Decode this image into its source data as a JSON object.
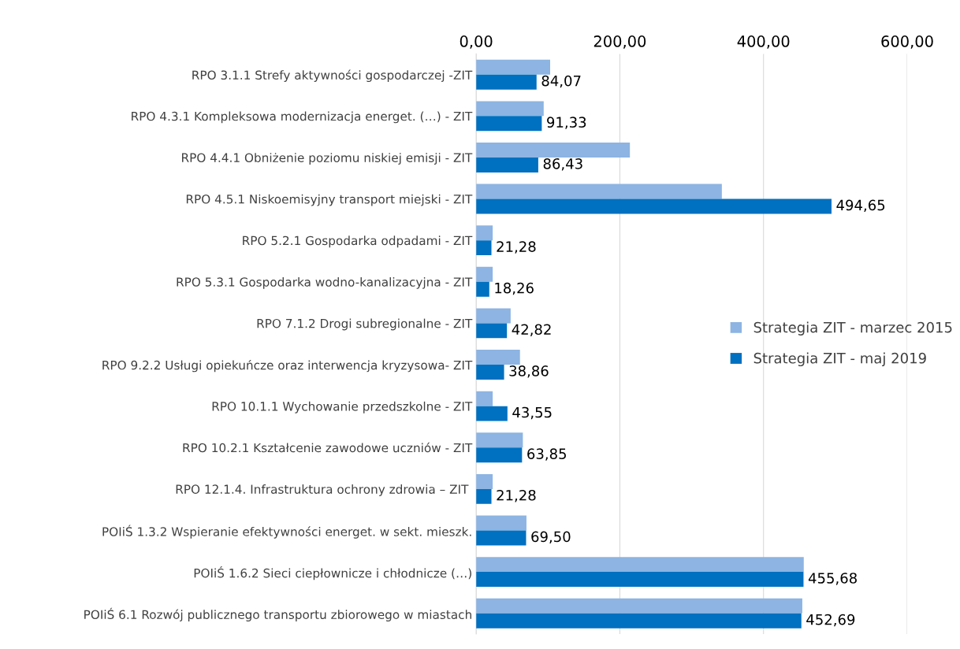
{
  "chart_data": {
    "type": "bar",
    "orientation": "horizontal",
    "categories": [
      "RPO 3.1.1 Strefy aktywności gospodarczej -ZIT",
      "RPO 4.3.1 Kompleksowa modernizacja energet. (…) - ZIT",
      "RPO 4.4.1 Obniżenie poziomu niskiej emisji - ZIT",
      "RPO 4.5.1 Niskoemisyjny transport miejski - ZIT",
      "RPO 5.2.1 Gospodarka odpadami - ZIT",
      "RPO 5.3.1 Gospodarka wodno-kanalizacyjna - ZIT",
      "RPO 7.1.2 Drogi subregionalne - ZIT",
      "RPO 9.2.2 Usługi opiekuńcze oraz interwencja kryzysowa- ZIT",
      "RPO 10.1.1 Wychowanie przedszkolne - ZIT",
      "RPO 10.2.1 Kształcenie zawodowe uczniów - ZIT",
      "RPO 12.1.4. Infrastruktura ochrony zdrowia – ZIT ",
      "POIiŚ 1.3.2 Wspieranie efektywności energet. w sekt. mieszk.",
      "POIiŚ 1.6.2 Sieci ciepłownicze i chłodnicze (…)",
      "POIiŚ 6.1 Rozwój publicznego transportu zbiorowego w miastach"
    ],
    "series": [
      {
        "name": "Strategia ZIT - marzec 2015",
        "color": "#8db4e2",
        "values": [
          103,
          94,
          214,
          342,
          23,
          23,
          48,
          61,
          23,
          65,
          23,
          70,
          456,
          454
        ]
      },
      {
        "name": "Strategia ZIT - maj 2019",
        "color": "#0070c0",
        "values": [
          84.07,
          91.33,
          86.43,
          494.65,
          21.28,
          18.26,
          42.82,
          38.86,
          43.55,
          63.85,
          21.28,
          69.5,
          455.68,
          452.69
        ],
        "value_labels": [
          "84,07",
          "91,33",
          "86,43",
          "494,65",
          "21,28",
          "18,26",
          "42,82",
          "38,86",
          "43,55",
          "63,85",
          "21,28",
          "69,50",
          "455,68",
          "452,69"
        ]
      }
    ],
    "xlim": [
      0,
      600
    ],
    "xticks": [
      {
        "value": 0,
        "label": "0,00"
      },
      {
        "value": 200,
        "label": "200,00"
      },
      {
        "value": 400,
        "label": "400,00"
      },
      {
        "value": 600,
        "label": "600,00"
      }
    ],
    "grid": "x",
    "legend": "right"
  }
}
